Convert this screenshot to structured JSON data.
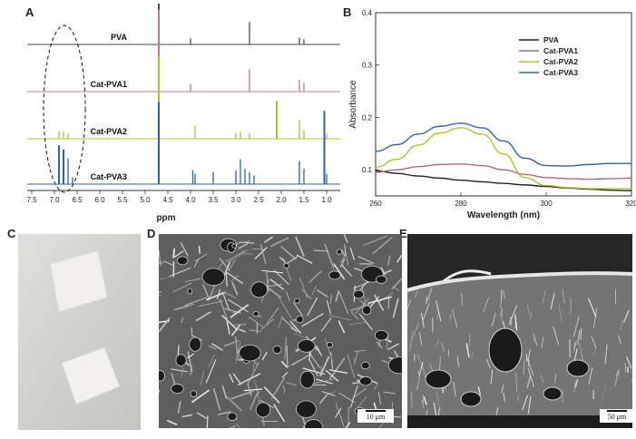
{
  "panels": {
    "a": "A",
    "b": "B",
    "c": "C",
    "d": "D",
    "e": "E"
  },
  "chart_data": [
    {
      "type": "line",
      "panel": "A",
      "kind": "1H NMR spectra (stacked)",
      "xlabel": "ppm",
      "xlim": [
        7.6,
        0.7
      ],
      "x_reversed": true,
      "xticks": [
        "7.5",
        "7.0",
        "6.5",
        "6.0",
        "5.5",
        "5.0",
        "4.5",
        "4.0",
        "3.5",
        "3.0",
        "2.5",
        "2.0",
        "1.5",
        "1.0"
      ],
      "annotation": "dashed ellipse around 6.5–7.0 ppm aromatic region",
      "series": [
        {
          "name": "PVA",
          "color": "#4a4a4a",
          "peaks": [
            [
              4.7,
              95
            ],
            [
              4.0,
              7
            ],
            [
              2.7,
              26
            ],
            [
              1.6,
              8
            ],
            [
              1.5,
              6
            ]
          ]
        },
        {
          "name": "Cat-PVA1",
          "color": "#c07a8a",
          "peaks": [
            [
              4.7,
              95
            ],
            [
              4.0,
              9
            ],
            [
              2.7,
              26
            ],
            [
              1.6,
              14
            ],
            [
              1.5,
              10
            ]
          ]
        },
        {
          "name": "Cat-PVA2",
          "color": "#b3c12f",
          "peaks": [
            [
              6.9,
              9
            ],
            [
              6.8,
              8
            ],
            [
              6.7,
              6
            ],
            [
              4.7,
              95
            ],
            [
              3.9,
              15
            ],
            [
              3.0,
              7
            ],
            [
              2.9,
              8
            ],
            [
              2.7,
              7
            ],
            [
              2.1,
              44
            ],
            [
              1.6,
              22
            ],
            [
              1.5,
              10
            ],
            [
              1.0,
              6
            ]
          ]
        },
        {
          "name": "Cat-PVA3",
          "color": "#2e63a8",
          "peaks": [
            [
              6.9,
              45
            ],
            [
              6.8,
              40
            ],
            [
              6.7,
              30
            ],
            [
              6.6,
              8
            ],
            [
              4.7,
              95
            ],
            [
              3.95,
              16
            ],
            [
              3.9,
              12
            ],
            [
              3.5,
              14
            ],
            [
              3.0,
              16
            ],
            [
              2.9,
              29
            ],
            [
              2.8,
              18
            ],
            [
              2.7,
              14
            ],
            [
              2.6,
              10
            ],
            [
              1.6,
              27
            ],
            [
              1.5,
              18
            ],
            [
              1.05,
              85
            ],
            [
              1.0,
              12
            ]
          ]
        }
      ]
    },
    {
      "type": "line",
      "panel": "B",
      "xlabel": "Wavelength (nm)",
      "ylabel": "Absorbance",
      "xlim": [
        260,
        320
      ],
      "ylim": [
        0.05,
        0.4
      ],
      "xticks": [
        "260",
        "280",
        "300",
        "320"
      ],
      "yticks": [
        "0.1",
        "0.2",
        "0.3",
        "0.4"
      ],
      "legend_position": "top-right",
      "series": [
        {
          "name": "PVA",
          "color": "#222222",
          "x": [
            260,
            265,
            270,
            275,
            280,
            285,
            290,
            295,
            300,
            305,
            310,
            315,
            320
          ],
          "y": [
            0.098,
            0.093,
            0.088,
            0.084,
            0.08,
            0.077,
            0.074,
            0.071,
            0.068,
            0.065,
            0.063,
            0.061,
            0.06
          ]
        },
        {
          "name": "Cat-PVA1",
          "color": "#b06a7c",
          "x": [
            260,
            265,
            270,
            275,
            280,
            285,
            290,
            295,
            300,
            305,
            310,
            315,
            320
          ],
          "y": [
            0.095,
            0.1,
            0.106,
            0.11,
            0.111,
            0.108,
            0.1,
            0.091,
            0.085,
            0.083,
            0.082,
            0.083,
            0.084
          ]
        },
        {
          "name": "Cat-PVA2",
          "color": "#b3c12f",
          "x": [
            260,
            265,
            270,
            275,
            280,
            285,
            290,
            295,
            300,
            305,
            310,
            315,
            320
          ],
          "y": [
            0.105,
            0.12,
            0.147,
            0.17,
            0.18,
            0.168,
            0.13,
            0.085,
            0.07,
            0.066,
            0.064,
            0.064,
            0.064
          ]
        },
        {
          "name": "Cat-PVA3",
          "color": "#2e63a8",
          "x": [
            260,
            265,
            270,
            275,
            280,
            285,
            290,
            295,
            300,
            305,
            310,
            315,
            320
          ],
          "y": [
            0.135,
            0.148,
            0.168,
            0.183,
            0.189,
            0.18,
            0.155,
            0.122,
            0.108,
            0.107,
            0.11,
            0.112,
            0.112
          ]
        }
      ]
    }
  ],
  "scalebars": {
    "d": "10 μm",
    "e": "50 μm"
  }
}
